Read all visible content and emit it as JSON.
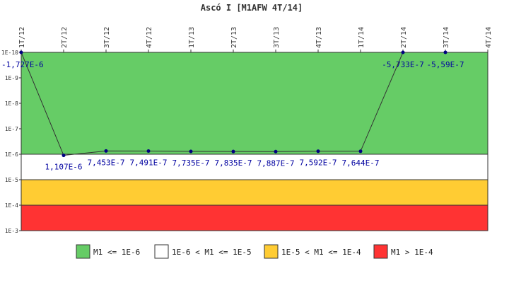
{
  "chart_data": {
    "type": "line",
    "title": "Ascó I [M1AFW 4T/14]",
    "xlabel": "",
    "ylabel": "",
    "x_ticks": [
      "1T/12",
      "2T/12",
      "3T/12",
      "4T/12",
      "1T/13",
      "2T/13",
      "3T/13",
      "4T/13",
      "1T/14",
      "2T/14",
      "3T/14",
      "4T/14"
    ],
    "y_scale": "log",
    "y_ticks": [
      "1E-10",
      "1E-9",
      "1E-8",
      "1E-7",
      "1E-6",
      "1E-5",
      "1E-4",
      "1E-3"
    ],
    "ylim": [
      1e-10,
      0.001
    ],
    "points": [
      {
        "x": "1T/12",
        "value": -1.727e-06,
        "label": "-1,727E-6"
      },
      {
        "x": "2T/12",
        "value": 1.107e-06,
        "label": "1,107E-6"
      },
      {
        "x": "3T/12",
        "value": 7.453e-07,
        "label": "7,453E-7"
      },
      {
        "x": "4T/12",
        "value": 7.491e-07,
        "label": "7,491E-7"
      },
      {
        "x": "1T/13",
        "value": 7.735e-07,
        "label": "7,735E-7"
      },
      {
        "x": "2T/13",
        "value": 7.835e-07,
        "label": "7,835E-7"
      },
      {
        "x": "3T/13",
        "value": 7.887e-07,
        "label": "7,887E-7"
      },
      {
        "x": "4T/13",
        "value": 7.592e-07,
        "label": "7,592E-7"
      },
      {
        "x": "1T/14",
        "value": 7.644e-07,
        "label": "7,644E-7"
      },
      {
        "x": "2T/14",
        "value": -5.733e-07,
        "label": "-5,733E-7"
      },
      {
        "x": "3T/14",
        "value": -5.59e-07,
        "label": "-5,59E-7"
      }
    ],
    "bands": [
      {
        "from": 1e-10,
        "to": 1e-06,
        "color": "#66cc66"
      },
      {
        "from": 1e-06,
        "to": 1e-05,
        "color": "#ffffff"
      },
      {
        "from": 1e-05,
        "to": 0.0001,
        "color": "#ffcc33"
      },
      {
        "from": 0.0001,
        "to": 0.001,
        "color": "#ff3333"
      }
    ],
    "legend": [
      {
        "label": "M1 <= 1E-6",
        "color": "#66cc66"
      },
      {
        "label": "1E-6 < M1 <= 1E-5",
        "color": "#ffffff"
      },
      {
        "label": "1E-5 < M1 <= 1E-4",
        "color": "#ffcc33"
      },
      {
        "label": "M1 > 1E-4",
        "color": "#ff3333"
      }
    ],
    "legend_position": "bottom",
    "line_color": "#333333",
    "marker_color": "#000080"
  }
}
